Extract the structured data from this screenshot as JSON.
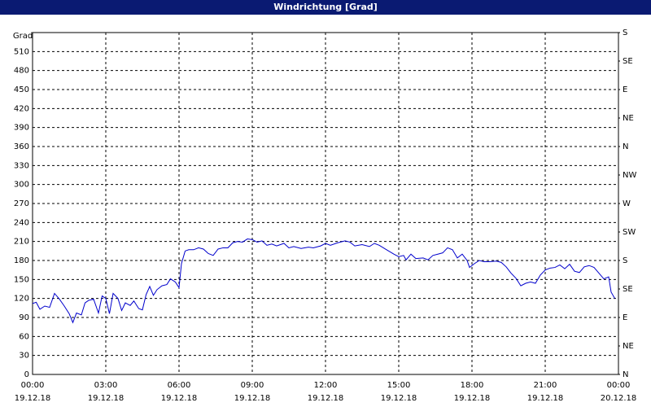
{
  "chart_data": {
    "type": "line",
    "title": "Windrichtung [Grad]",
    "y_label": "Grad",
    "x": [
      0,
      0.15,
      0.3,
      0.5,
      0.7,
      0.9,
      1.1,
      1.3,
      1.5,
      1.65,
      1.8,
      2.0,
      2.15,
      2.3,
      2.5,
      2.7,
      2.85,
      3.0,
      3.15,
      3.3,
      3.5,
      3.65,
      3.8,
      4.0,
      4.15,
      4.35,
      4.5,
      4.65,
      4.8,
      4.95,
      5.1,
      5.3,
      5.5,
      5.65,
      5.85,
      6.0,
      6.1,
      6.25,
      6.4,
      6.6,
      6.8,
      7.0,
      7.2,
      7.4,
      7.6,
      7.8,
      8.0,
      8.2,
      8.4,
      8.6,
      8.8,
      9.0,
      9.2,
      9.4,
      9.6,
      9.8,
      10.0,
      10.3,
      10.5,
      10.7,
      11.0,
      11.3,
      11.5,
      11.8,
      12.0,
      12.2,
      12.5,
      12.8,
      13.0,
      13.2,
      13.5,
      13.8,
      14.0,
      14.2,
      14.5,
      14.8,
      15.0,
      15.2,
      15.3,
      15.5,
      15.7,
      16.0,
      16.2,
      16.4,
      16.6,
      16.8,
      17.0,
      17.2,
      17.4,
      17.6,
      17.8,
      17.9,
      18.1,
      18.3,
      18.5,
      18.7,
      19.0,
      19.2,
      19.4,
      19.6,
      19.8,
      20.0,
      20.2,
      20.4,
      20.6,
      20.8,
      21.0,
      21.2,
      21.4,
      21.6,
      21.8,
      22.0,
      22.2,
      22.4,
      22.6,
      22.8,
      23.0,
      23.2,
      23.4,
      23.6,
      23.7,
      23.85
    ],
    "values": [
      112,
      114,
      103,
      108,
      106,
      128,
      119,
      108,
      96,
      82,
      97,
      94,
      113,
      117,
      119,
      97,
      124,
      120,
      96,
      128,
      120,
      101,
      113,
      109,
      116,
      104,
      102,
      126,
      139,
      125,
      134,
      140,
      142,
      151,
      146,
      137,
      175,
      195,
      197,
      197,
      200,
      198,
      191,
      188,
      198,
      200,
      200,
      208,
      210,
      209,
      214,
      213,
      209,
      211,
      204,
      206,
      203,
      207,
      200,
      202,
      199,
      201,
      200,
      203,
      207,
      204,
      208,
      211,
      209,
      203,
      205,
      202,
      207,
      204,
      197,
      190,
      186,
      188,
      181,
      190,
      183,
      184,
      181,
      188,
      190,
      192,
      200,
      197,
      184,
      190,
      180,
      169,
      175,
      180,
      178,
      178,
      179,
      177,
      170,
      160,
      152,
      140,
      144,
      146,
      144,
      157,
      165,
      168,
      169,
      173,
      167,
      174,
      163,
      161,
      170,
      172,
      169,
      160,
      151,
      154,
      130,
      120
    ],
    "color": "#0000cc",
    "xlim": [
      0,
      24
    ],
    "xticks": [
      {
        "value": 0,
        "label": "00:00"
      },
      {
        "value": 3,
        "label": "03:00"
      },
      {
        "value": 6,
        "label": "06:00"
      },
      {
        "value": 9,
        "label": "09:00"
      },
      {
        "value": 12,
        "label": "12:00"
      },
      {
        "value": 15,
        "label": "15:00"
      },
      {
        "value": 18,
        "label": "18:00"
      },
      {
        "value": 21,
        "label": "21:00"
      },
      {
        "value": 24,
        "label": "00:00"
      }
    ],
    "xtick_dates": [
      "19.12.18",
      "19.12.18",
      "19.12.18",
      "19.12.18",
      "19.12.18",
      "19.12.18",
      "19.12.18",
      "19.12.18",
      "20.12.18"
    ],
    "ylim": [
      0,
      540
    ],
    "yticks": [
      0,
      30,
      60,
      90,
      120,
      150,
      180,
      210,
      240,
      270,
      300,
      330,
      360,
      390,
      420,
      450,
      480,
      510
    ],
    "y2lim": [
      0,
      540
    ],
    "y2ticks": [
      {
        "value": 0,
        "label": "N"
      },
      {
        "value": 45,
        "label": "NE"
      },
      {
        "value": 90,
        "label": "E"
      },
      {
        "value": 135,
        "label": "SE"
      },
      {
        "value": 180,
        "label": "S"
      },
      {
        "value": 225,
        "label": "SW"
      },
      {
        "value": 270,
        "label": "W"
      },
      {
        "value": 315,
        "label": "NW"
      },
      {
        "value": 360,
        "label": "N"
      },
      {
        "value": 405,
        "label": "NE"
      },
      {
        "value": 450,
        "label": "E"
      },
      {
        "value": 495,
        "label": "SE"
      },
      {
        "value": 540,
        "label": "S"
      }
    ],
    "grid": true
  }
}
